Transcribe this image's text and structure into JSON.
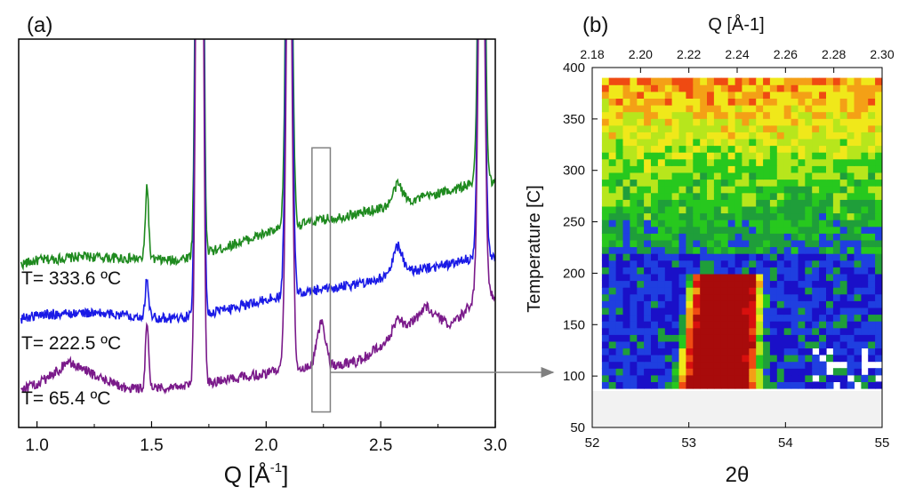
{
  "panel_a": {
    "label": "(a)",
    "xlabel_base": "Q [Å",
    "xlabel_sup": "-1",
    "xlabel_end": "]",
    "annotations": [
      "T= 333.6 ºC",
      "T= 222.5 ºC",
      "T= 65.4 ºC"
    ]
  },
  "panel_b": {
    "label": "(b)",
    "xlabel_top": "Q [Å-1]",
    "xlabel_bottom": "2θ",
    "ylabel": "Temperature [C]"
  },
  "chart_data": [
    {
      "type": "line",
      "panel": "(a)",
      "xlabel": "Q [Å-1]",
      "ylabel": "",
      "xlim": [
        0.92,
        3.0
      ],
      "ylim": [
        0,
        100
      ],
      "xticks": [
        1.0,
        1.5,
        2.0,
        2.5,
        3.0
      ],
      "xtick_labels": [
        "1.0",
        "1.5",
        "2.0",
        "2.5",
        "3.0"
      ],
      "annotation_box": {
        "x_range": [
          2.2,
          2.28
        ],
        "y_range": [
          4,
          72
        ],
        "arrow_to": "(b)"
      },
      "peaks": [
        {
          "q": 1.48,
          "width": 0.007
        },
        {
          "q": 1.7,
          "width": 0.009
        },
        {
          "q": 1.72,
          "width": 0.008
        },
        {
          "q": 2.1,
          "width": 0.012
        },
        {
          "q": 2.575,
          "width": 0.02
        },
        {
          "q": 2.94,
          "width": 0.012
        }
      ],
      "series": [
        {
          "name": "T= 333.6 ºC",
          "color": "#1f8a1f",
          "x": [
            0.93,
            1.0,
            1.2,
            1.4,
            1.6,
            1.8,
            2.0,
            2.2,
            2.4,
            2.6,
            2.8,
            2.92
          ],
          "y": [
            42,
            43,
            44,
            43.5,
            43,
            46,
            50,
            53,
            55,
            58,
            61,
            63
          ],
          "peak_heights": [
            19,
            140,
            140,
            140,
            5,
            140
          ]
        },
        {
          "name": "T= 222.5 ºC",
          "color": "#1a1ae6",
          "x": [
            0.93,
            1.0,
            1.2,
            1.4,
            1.6,
            1.8,
            2.0,
            2.2,
            2.4,
            2.6,
            2.8,
            2.92
          ],
          "y": [
            28,
            29,
            29.5,
            29,
            28,
            30,
            33,
            35,
            37,
            40,
            42,
            44
          ],
          "peak_heights": [
            10,
            140,
            140,
            140,
            7,
            140
          ]
        },
        {
          "name": "T= 65.4 ºC",
          "color": "#7a1a8a",
          "x": [
            0.93,
            1.0,
            1.1,
            1.13,
            1.2,
            1.3,
            1.4,
            1.6,
            1.8,
            2.0,
            2.2,
            2.24,
            2.28,
            2.4,
            2.5,
            2.6,
            2.7,
            2.8,
            2.87,
            2.92
          ],
          "y": [
            10,
            11,
            15,
            17,
            15,
            12,
            10,
            10.5,
            12,
            14,
            16,
            28,
            16,
            17,
            21,
            25,
            31,
            26,
            30,
            34
          ],
          "peak_heights": [
            16,
            140,
            140,
            140,
            4,
            140
          ]
        }
      ]
    },
    {
      "type": "heatmap",
      "panel": "(b)",
      "xlabel": "2θ",
      "x2label": "Q [Å-1]",
      "ylabel": "Temperature [C]",
      "xlim": [
        52,
        55
      ],
      "x2lim": [
        2.18,
        2.3
      ],
      "ylim": [
        50,
        400
      ],
      "xticks": [
        52,
        53,
        54,
        55
      ],
      "x2ticks": [
        "2.18",
        "2.20",
        "2.22",
        "2.24",
        "2.26",
        "2.28",
        "2.30"
      ],
      "yticks": [
        50,
        100,
        150,
        200,
        250,
        300,
        350,
        400
      ],
      "data_range": {
        "two_theta": [
          52.1,
          55
        ],
        "temperature": [
          88,
          390
        ]
      },
      "hot_band": {
        "temperature_range": [
          88,
          200
        ],
        "center_two_theta_at_top": 53.4,
        "center_two_theta_at_bottom": 53.3,
        "half_width": 0.42
      },
      "colormap": [
        "#1a10c8",
        "#1f3fe0",
        "#1f9e3a",
        "#27c81e",
        "#b7e61c",
        "#f0e81a",
        "#f4a016",
        "#ef4a12",
        "#d8100e",
        "#a80b0b"
      ]
    }
  ]
}
